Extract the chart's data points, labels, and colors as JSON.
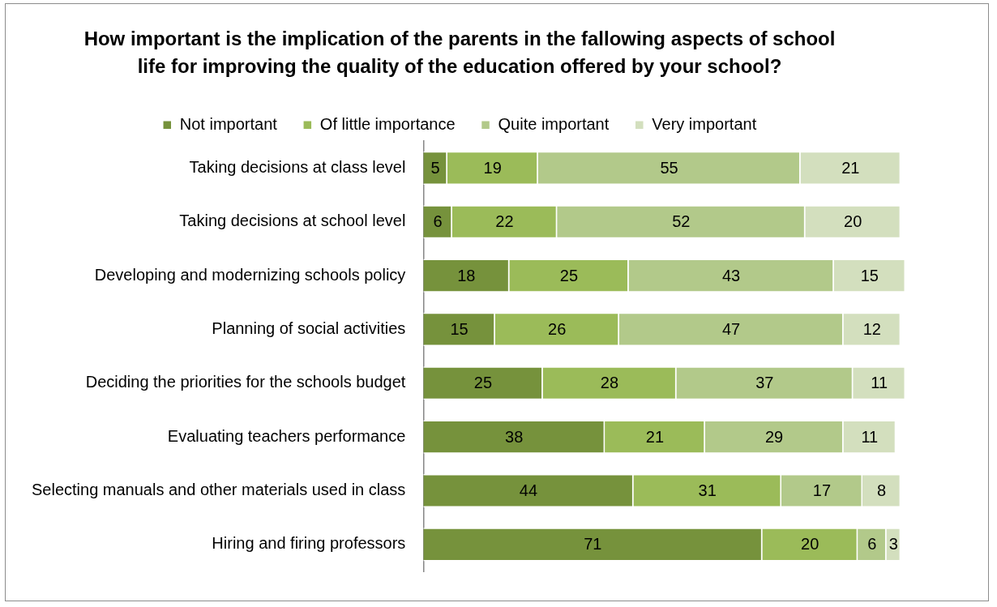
{
  "chart_data": {
    "type": "bar",
    "orientation": "horizontal",
    "stacked": true,
    "title": "How important is the implication of the parents in the fallowing aspects of school life for improving the quality of the education offered by your school?",
    "categories": [
      "Taking decisions at class level",
      "Taking decisions at school level",
      "Developing and modernizing schools policy",
      "Planning of social activities",
      "Deciding the priorities for the schools budget",
      "Evaluating teachers performance",
      "Selecting manuals and other materials used in class",
      "Hiring and firing professors"
    ],
    "series": [
      {
        "name": "Not important",
        "color": "#76923c",
        "values": [
          5,
          6,
          18,
          15,
          25,
          38,
          44,
          71
        ]
      },
      {
        "name": "Of little importance",
        "color": "#9bbb59",
        "values": [
          19,
          22,
          25,
          26,
          28,
          21,
          31,
          20
        ]
      },
      {
        "name": "Quite important",
        "color": "#b2c98a",
        "values": [
          55,
          52,
          43,
          47,
          37,
          29,
          17,
          6
        ]
      },
      {
        "name": "Very important",
        "color": "#d3dfbe",
        "values": [
          21,
          20,
          15,
          12,
          11,
          11,
          8,
          3
        ]
      }
    ],
    "xlim": [
      0,
      101
    ],
    "legend": "top",
    "grid": false,
    "tick_labels": "y",
    "data_labels": true
  }
}
